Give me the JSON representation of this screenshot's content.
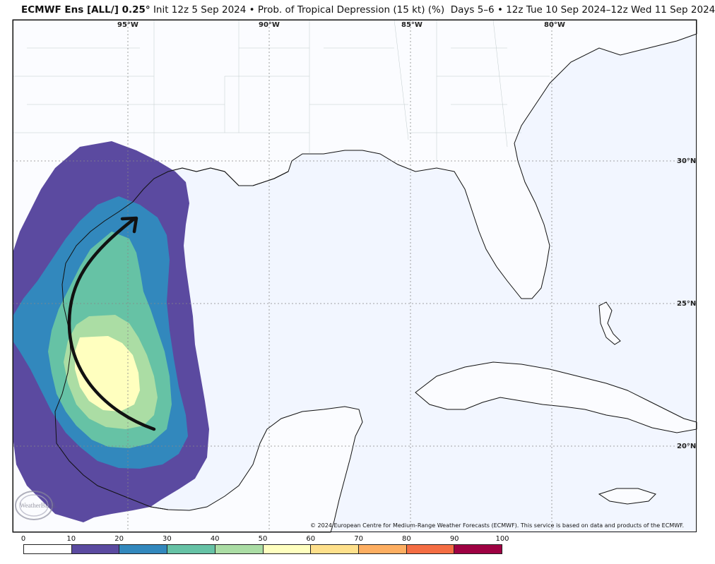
{
  "title": {
    "model": "ECMWF Ens [ALL/] 0.25",
    "degree": "°",
    "init": "Init 12z 5 Sep 2024",
    "bullet": "•",
    "field": "Prob. of Tropical Depression (15 kt) (%)",
    "days": "Days 5–6",
    "valid": "12z Tue 10 Sep 2024–12z Wed 11 Sep 2024"
  },
  "map": {
    "longitude_labels": [
      "95°W",
      "90°W",
      "85°W",
      "80°W"
    ],
    "latitude_labels": [
      "30°N",
      "25°N",
      "20°N"
    ],
    "ocean_color": "#f2f6ff",
    "land_color": "#ffffff",
    "annotation": "hand-drawn black arrow curving north along Texas coast",
    "copyright": "© 2024 European Centre for Medium-Range Weather Forecasts (ECMWF). This service is based on data and products of the ECMWF.",
    "logo": "WeatherBELL"
  },
  "colorbar": {
    "ticks": [
      "0",
      "10",
      "20",
      "30",
      "40",
      "50",
      "60",
      "70",
      "80",
      "90",
      "100"
    ],
    "colors": [
      "#ffffff",
      "#5b4aa0",
      "#3288bd",
      "#66c2a5",
      "#abdda4",
      "#ffffbf",
      "#fee08b",
      "#fdae61",
      "#f46d43",
      "#9e0142"
    ]
  }
}
